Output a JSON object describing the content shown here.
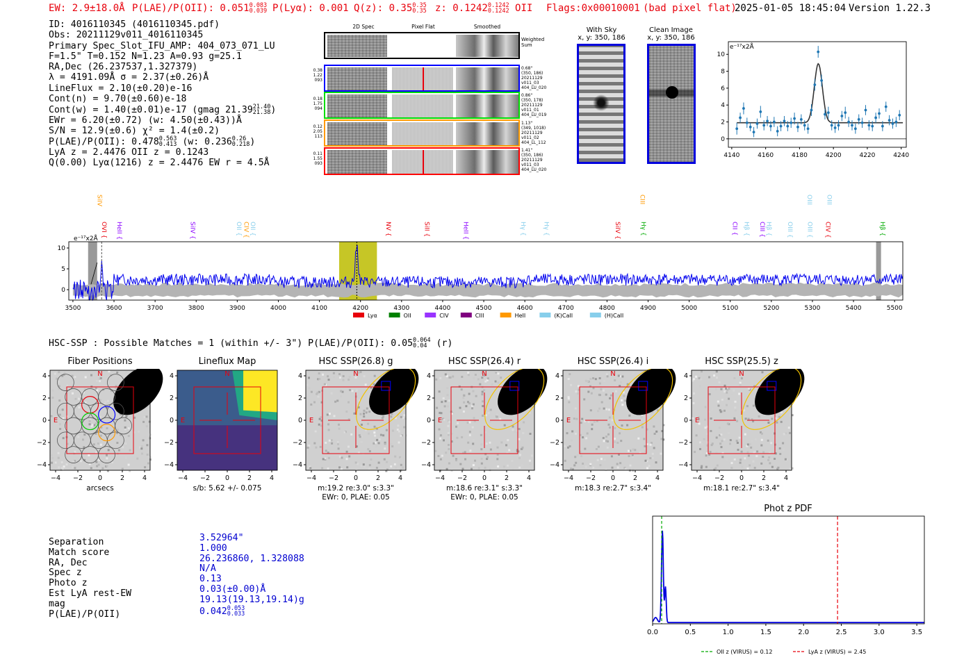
{
  "header": {
    "ew": "EW: 2.9±18.0Å",
    "plae_label": "P(LAE)/P(OII): 0.051",
    "plae_hi": "0.083",
    "plae_lo": "0.039",
    "plya": "P(Lyα): 0.001",
    "qz_label": "Q(z): 0.35",
    "qz_hi": "0.35",
    "qz_lo": "0.35",
    "z_label": "z: 0.1242",
    "z_hi": "0.1242",
    "z_lo": "0.1242",
    "z_line": "OII",
    "flags": "Flags:0x00010001",
    "flags_note": "(bad pixel flat)",
    "timestamp": "2025-01-05 18:45:04",
    "version": "Version 1.22.3"
  },
  "info": {
    "id": "ID: 4016110345 (4016110345.pdf)",
    "obs": "Obs: 20211129v011_4016110345",
    "primary": "Primary Spec_Slot_IFU_AMP: 404_073_071_LU",
    "fit": "F=1.5\"  T=0.152  N=1.23  A=0.93  g=25.1",
    "radec": "RA,Dec (26.237537,1.327379)",
    "lambda": "λ = 4191.09Å  σ = 2.37(±0.26)Å",
    "lineflux": "LineFlux = 2.10(±0.20)e-16",
    "contn": "Cont(n) = 9.70(±0.60)e-18",
    "contw_a": "Cont(w) = 1.40(±0.01)e-17 (gmag 21.39",
    "contw_hi": "21.40",
    "contw_lo": "21.38",
    "contw_b": ")",
    "ewr": "EWr = 6.20(±0.72) (w: 4.50(±0.43))Å",
    "sn": "S/N = 12.9(±0.6)  χ² = 1.4(±0.2)",
    "plae_a": "P(LAE)/P(OII): 0.478",
    "plae_hi": "0.563",
    "plae_lo": "0.413",
    "plae_b": " (w: 0.236",
    "plae_w_hi": "0.26",
    "plae_w_lo": "0.218",
    "plae_c": ")",
    "lya_z": "LyA z = 2.4476  OII z = 0.1243",
    "q": "Q(0.00) Lyα(1216) z = 2.4476  EW r = 4.5Å"
  },
  "cutouts": {
    "headers": [
      "2D Spec",
      "Pixel Flat",
      "Smoothed"
    ],
    "weighted": "Weighted Sum",
    "rows": [
      {
        "color": "#0000ff",
        "left": [
          "0.38",
          "1.22",
          "093"
        ],
        "right": [
          "0.68\"",
          "(350, 186)",
          "20211129",
          "v011_03",
          "404_LU_020"
        ]
      },
      {
        "color": "#00dd00",
        "left": [
          "0.18",
          "1.75",
          "094"
        ],
        "right": [
          "0.86\"",
          "(350, 178)",
          "20211129",
          "v011_01",
          "404_LU_019"
        ]
      },
      {
        "color": "#ff9900",
        "left": [
          "0.12",
          "2.05",
          "113"
        ],
        "right": [
          "1.13\"",
          "(349, 1018)",
          "20211129",
          "v011_02",
          "404_LL_112"
        ]
      },
      {
        "color": "#ff0000",
        "left": [
          "0.11",
          "1.55",
          "093"
        ],
        "right": [
          "1.41\"",
          "(350, 186)",
          "20211129",
          "v011_03",
          "404_LU_020"
        ]
      }
    ]
  },
  "with_sky": {
    "title": "With Sky",
    "coords": "x, y: 350, 186"
  },
  "clean_image": {
    "title": "Clean Image",
    "coords": "x, y: 350, 186"
  },
  "colors": {
    "accent_blue": "#0000ff",
    "fit_line": "#333333",
    "data_points": "#1f77b4",
    "highlight": "#bcbc00",
    "red": "#e8000b"
  },
  "chart_data": [
    {
      "type": "scatter",
      "name": "line-fit",
      "ylabel_prefix": "e⁻¹⁷x2Å",
      "xlim": [
        4138,
        4243
      ],
      "ylim": [
        -1,
        11.5
      ],
      "xticks": [
        4140,
        4160,
        4180,
        4200,
        4220,
        4240
      ],
      "yticks": [
        0,
        2,
        4,
        6,
        8,
        10
      ],
      "fit": {
        "center": 4191.09,
        "sigma": 2.37,
        "amplitude": 7.0,
        "continuum": 1.9
      },
      "x": [
        4143,
        4145,
        4147,
        4149,
        4151,
        4153,
        4155,
        4157,
        4159,
        4161,
        4163,
        4165,
        4167,
        4169,
        4171,
        4173,
        4175,
        4177,
        4179,
        4181,
        4183,
        4185,
        4187,
        4189,
        4191,
        4193,
        4195,
        4197,
        4199,
        4201,
        4203,
        4205,
        4207,
        4209,
        4211,
        4213,
        4215,
        4217,
        4219,
        4221,
        4223,
        4225,
        4227,
        4229,
        4231,
        4233,
        4235,
        4237,
        4239
      ],
      "y": [
        1.2,
        2.5,
        3.6,
        1.9,
        1.4,
        0.8,
        1.8,
        3.2,
        1.6,
        2.1,
        1.5,
        2.0,
        0.9,
        1.5,
        2.1,
        1.5,
        1.9,
        2.4,
        1.4,
        2.3,
        1.6,
        1.2,
        3.4,
        6.4,
        10.3,
        6.9,
        2.9,
        3.1,
        1.6,
        1.3,
        1.6,
        2.7,
        3.1,
        2.0,
        1.6,
        1.2,
        2.3,
        1.9,
        3.4,
        1.6,
        1.5,
        2.5,
        3.0,
        1.5,
        3.8,
        2.2,
        1.8,
        2.0,
        2.8
      ],
      "yerr": [
        0.7,
        0.6,
        0.7,
        0.6,
        0.5,
        0.6,
        0.6,
        0.7,
        0.6,
        0.6,
        0.6,
        0.6,
        0.6,
        0.6,
        0.6,
        0.6,
        0.6,
        0.7,
        0.6,
        0.6,
        0.6,
        0.6,
        0.7,
        0.7,
        0.7,
        0.7,
        0.6,
        0.7,
        0.6,
        0.6,
        0.6,
        0.6,
        0.7,
        0.6,
        0.6,
        0.6,
        0.6,
        0.6,
        0.6,
        0.6,
        0.6,
        0.6,
        0.6,
        0.6,
        0.6,
        0.6,
        0.6,
        0.6,
        0.6
      ]
    },
    {
      "type": "line",
      "name": "full-spectrum",
      "ylabel_prefix": "e⁻¹⁷x2Å",
      "xlim": [
        3490,
        5520
      ],
      "ylim": [
        -2.5,
        11.5
      ],
      "xticks": [
        3500,
        3600,
        3700,
        3800,
        3900,
        4000,
        4100,
        4200,
        4300,
        4400,
        4500,
        4600,
        4700,
        4800,
        4900,
        5000,
        5100,
        5200,
        5300,
        5400,
        5500
      ],
      "yticks": [
        0,
        5,
        10
      ],
      "highlight_range": [
        4148,
        4240
      ],
      "peak": {
        "x": 4191,
        "y": 11.0
      },
      "emission_lines": [
        {
          "label": "SiIV",
          "x": 3555,
          "color": "#ff9900",
          "row": 0
        },
        {
          "label": "OVI",
          "x": 3566,
          "color": "#e8000b",
          "row": 1
        },
        {
          "label": "HeII",
          "x": 3603,
          "color": "#8b00ff",
          "row": 1
        },
        {
          "label": "SiIV",
          "x": 3782,
          "color": "#8b00ff",
          "row": 1
        },
        {
          "label": "OII",
          "x": 3894,
          "color": "#87ceeb",
          "row": 1
        },
        {
          "label": "CIV",
          "x": 3912,
          "color": "#ff9900",
          "row": 1
        },
        {
          "label": "OII",
          "x": 3928,
          "color": "#87ceeb",
          "row": 1
        },
        {
          "label": "NV",
          "x": 4258,
          "color": "#e8000b",
          "row": 1
        },
        {
          "label": "SiII",
          "x": 4352,
          "color": "#e8000b",
          "row": 1
        },
        {
          "label": "HeII",
          "x": 4447,
          "color": "#8b00ff",
          "row": 1
        },
        {
          "label": "Hγ",
          "x": 4586,
          "color": "#87ceeb",
          "row": 1
        },
        {
          "label": "Hγ",
          "x": 4643,
          "color": "#87ceeb",
          "row": 1
        },
        {
          "label": "SiIV",
          "x": 4816,
          "color": "#e8000b",
          "row": 1
        },
        {
          "label": "CIII",
          "x": 4876,
          "color": "#ff9900",
          "row": 0
        },
        {
          "label": "Hγ",
          "x": 4879,
          "color": "#00aa00",
          "row": 1
        },
        {
          "label": "CII",
          "x": 5101,
          "color": "#8b00ff",
          "row": 1
        },
        {
          "label": "Hβ",
          "x": 5130,
          "color": "#87ceeb",
          "row": 1
        },
        {
          "label": "CIII",
          "x": 5168,
          "color": "#8b00ff",
          "row": 1
        },
        {
          "label": "Hβ",
          "x": 5184,
          "color": "#87ceeb",
          "row": 1
        },
        {
          "label": "OIII",
          "x": 5236,
          "color": "#87ceeb",
          "row": 1
        },
        {
          "label": "OIII",
          "x": 5283,
          "color": "#87ceeb",
          "row": 0
        },
        {
          "label": "OIII",
          "x": 5284,
          "color": "#87ceeb",
          "row": 1
        },
        {
          "label": "OIII",
          "x": 5331,
          "color": "#87ceeb",
          "row": 0
        },
        {
          "label": "CIV",
          "x": 5328,
          "color": "#e8000b",
          "row": 1
        },
        {
          "label": "Hβ",
          "x": 5461,
          "color": "#00aa00",
          "row": 1
        }
      ],
      "legend": [
        {
          "label": "Lyα",
          "color": "#e8000b"
        },
        {
          "label": "OII",
          "color": "#008000"
        },
        {
          "label": "CIV",
          "color": "#9933ff"
        },
        {
          "label": "CIII",
          "color": "#800080"
        },
        {
          "label": "HeII",
          "color": "#ff9900"
        },
        {
          "label": "(K)CaII",
          "color": "#87ceeb"
        },
        {
          "label": "(H)CaII",
          "color": "#87ceeb"
        }
      ]
    },
    {
      "type": "line",
      "name": "phot-z-pdf",
      "title": "Phot z PDF",
      "xlim": [
        0.0,
        3.6
      ],
      "xticks": [
        0.0,
        0.5,
        1.0,
        1.5,
        2.0,
        2.5,
        3.0,
        3.5
      ],
      "peak_z": 0.13,
      "oii_z": 0.12,
      "lya_z": 2.45,
      "legend": [
        {
          "label": "OII z (VIRUS) = 0.12",
          "color": "#00aa00"
        },
        {
          "label": "LyA z (VIRUS) = 2.45",
          "color": "#e8000b"
        }
      ]
    }
  ],
  "hsc_header": {
    "text": "HSC-SSP : Possible Matches = 1 (within +/- 3\")  P(LAE)/P(OII): 0.05",
    "hi": "0.064",
    "lo": "0.04",
    "suffix": "(r)"
  },
  "panels": [
    {
      "title": "Fiber Positions",
      "xlabel": "arcsecs",
      "line2": ""
    },
    {
      "title": "Lineflux Map",
      "xlabel": "s/b: 5.62 +/- 0.075",
      "line2": ""
    },
    {
      "title": "HSC SSP(26.8) g",
      "xlabel": "m:19.2  re:3.0\"  s:3.3\"",
      "line2": "EWr: 0, PLAE: 0.05"
    },
    {
      "title": "HSC SSP(26.4) r",
      "xlabel": "m:18.6  re:3.1\"  s:3.3\"",
      "line2": "EWr: 0, PLAE: 0.05"
    },
    {
      "title": "HSC SSP(26.4) i",
      "xlabel": "m:18.3  re:2.7\"  s:3.4\"",
      "line2": ""
    },
    {
      "title": "HSC SSP(25.5) z",
      "xlabel": "m:18.1  re:2.7\"  s:3.4\"",
      "line2": ""
    }
  ],
  "panel_axis": {
    "xticks": [
      "−4",
      "−2",
      "0",
      "2",
      "4"
    ],
    "yticks": [
      "4",
      "2",
      "0",
      "−2",
      "−4"
    ],
    "north": "N",
    "east": "E"
  },
  "stats": {
    "labels": [
      "Separation",
      "Match score",
      "RA, Dec",
      "Spec z",
      "Photo z",
      "Est LyA rest-EW",
      "mag",
      "P(LAE)/P(OII)"
    ],
    "values": [
      "3.52964\"",
      "1.000",
      "26.236860, 1.328088",
      "N/A",
      "0.13",
      "0.03(±0.00)Å",
      "19.13(19.13,19.14)g",
      "0.042"
    ],
    "plae_hi": "0.053",
    "plae_lo": "0.033"
  }
}
